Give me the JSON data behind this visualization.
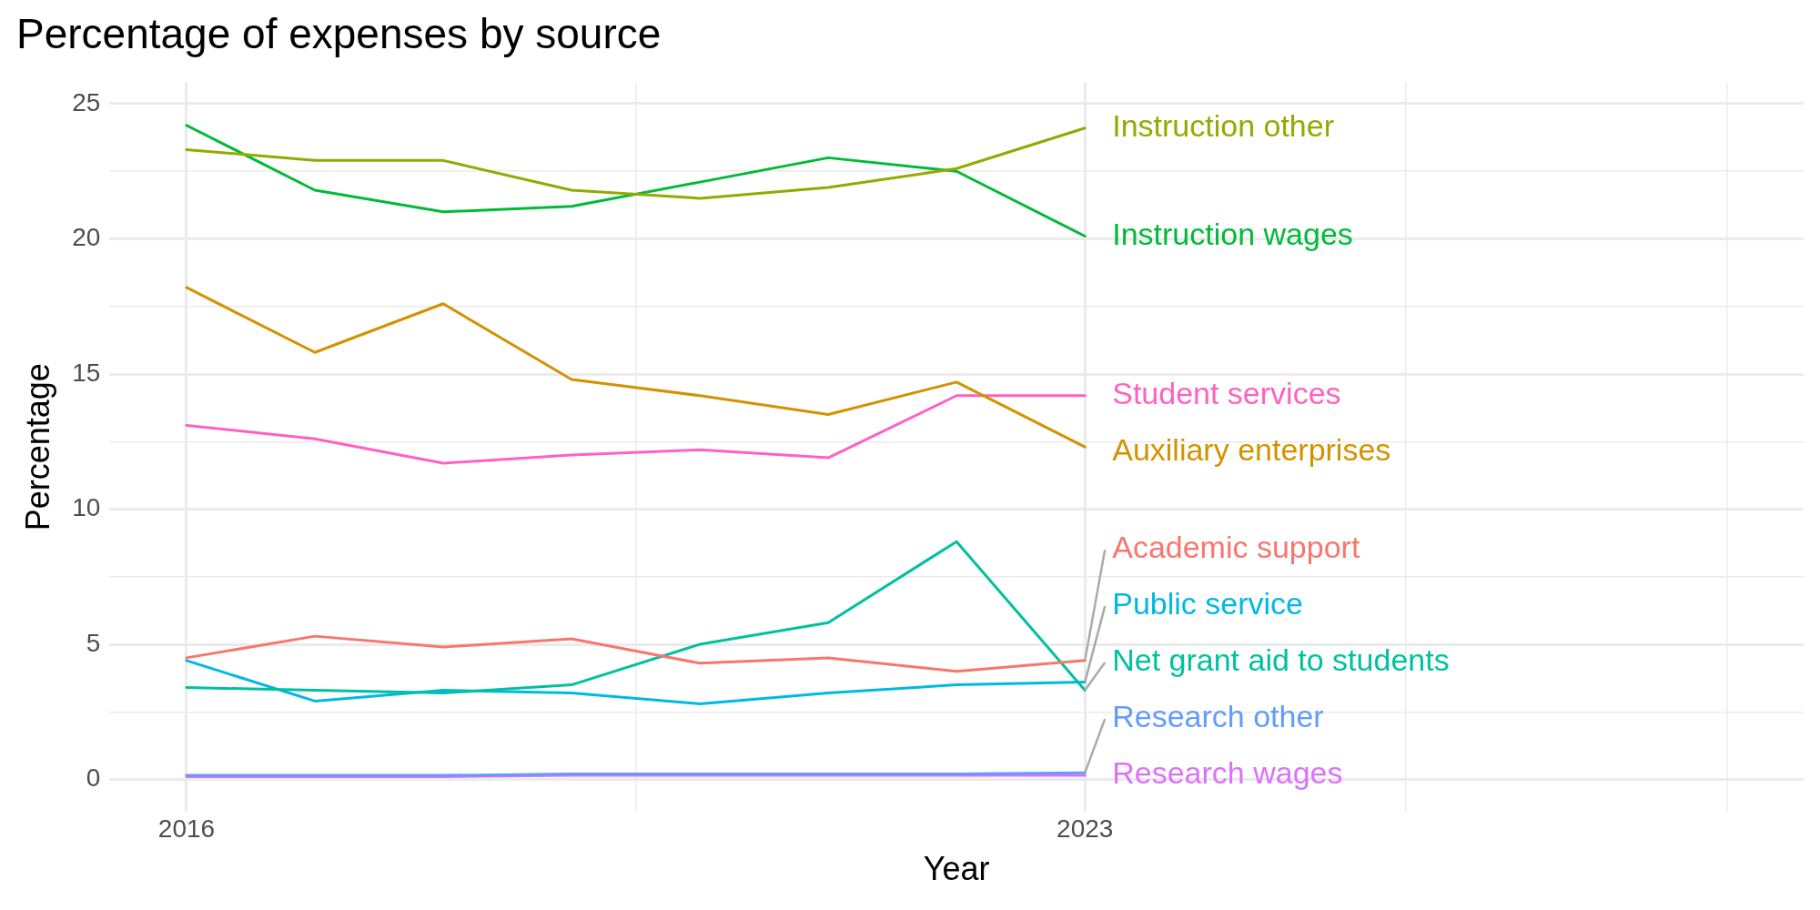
{
  "chart_data": {
    "type": "line",
    "title": "Percentage of expenses by source",
    "xlabel": "Year",
    "ylabel": "Percentage",
    "x": [
      2016,
      2017,
      2018,
      2019,
      2020,
      2021,
      2022,
      2023
    ],
    "xlim": [
      2015.4,
      2028.6
    ],
    "xticks": [
      2016,
      {
        "value": 2019.5,
        "label": null
      },
      2023,
      {
        "value": 2025.5,
        "label": null
      },
      {
        "value": 2028,
        "label": null
      }
    ],
    "ylim": [
      -1.2,
      25.8
    ],
    "yticks": [
      0,
      {
        "value": 2.5,
        "label": null
      },
      5,
      {
        "value": 7.5,
        "label": null
      },
      10,
      {
        "value": 12.5,
        "label": null
      },
      15,
      {
        "value": 17.5,
        "label": null
      },
      20,
      {
        "value": 22.5,
        "label": null
      },
      25
    ],
    "grid": true,
    "legend": false,
    "marker": "none",
    "line_style": "solid",
    "series": [
      {
        "name": "Academic support",
        "color": "#f8766d",
        "values": [
          4.5,
          5.3,
          4.9,
          5.2,
          4.3,
          4.5,
          4.0,
          4.4
        ]
      },
      {
        "name": "Auxiliary enterprises",
        "color": "#d39200",
        "values": [
          18.2,
          15.8,
          17.6,
          14.8,
          14.2,
          13.5,
          14.7,
          12.3
        ]
      },
      {
        "name": "Instruction other",
        "color": "#93aa00",
        "values": [
          23.3,
          22.9,
          22.9,
          21.8,
          21.5,
          21.9,
          22.6,
          24.1
        ]
      },
      {
        "name": "Instruction wages",
        "color": "#00ba38",
        "values": [
          24.2,
          21.8,
          21.0,
          21.2,
          22.1,
          23.0,
          22.5,
          20.1
        ]
      },
      {
        "name": "Net grant aid to students",
        "color": "#00c19f",
        "values": [
          3.4,
          3.3,
          3.2,
          3.5,
          5.0,
          5.8,
          8.8,
          3.3
        ]
      },
      {
        "name": "Public service",
        "color": "#00b9e3",
        "values": [
          4.4,
          2.9,
          3.3,
          3.2,
          2.8,
          3.2,
          3.5,
          3.6
        ]
      },
      {
        "name": "Research other",
        "color": "#619cff",
        "values": [
          0.15,
          0.15,
          0.15,
          0.2,
          0.2,
          0.2,
          0.2,
          0.25
        ]
      },
      {
        "name": "Research wages",
        "color": "#db72fb",
        "values": [
          0.1,
          0.1,
          0.1,
          0.15,
          0.15,
          0.15,
          0.15,
          0.15
        ]
      },
      {
        "name": "Student services",
        "color": "#ff61c3",
        "values": [
          13.1,
          12.6,
          11.7,
          12.0,
          12.2,
          11.9,
          14.2,
          14.2
        ]
      }
    ]
  }
}
